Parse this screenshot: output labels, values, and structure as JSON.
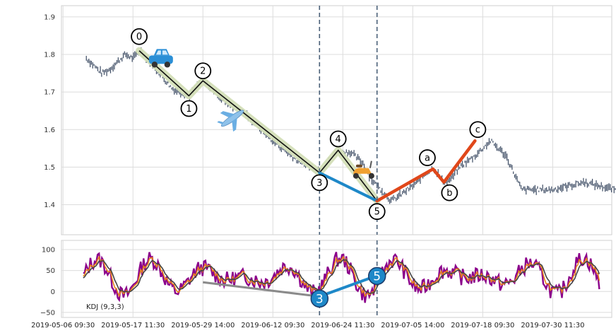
{
  "chart_data": [
    {
      "type": "line",
      "panel": "price",
      "title": "",
      "ylim": [
        1.32,
        1.93
      ],
      "yticks": [
        "1.4",
        "1.5",
        "1.6",
        "1.7",
        "1.8",
        "1.9"
      ],
      "grid": true,
      "colors": {
        "price_bar": "#3b4a62",
        "wave_band": "#d4dfb8",
        "wave_line": "#111111",
        "corrective_blue": "#1e88c8",
        "corrective_orange": "#e0471a",
        "vline": "#4a6078"
      },
      "price_keypoints": {
        "x": [
          0.0,
          0.5,
          1.0,
          1.5,
          2.0,
          2.5,
          3.0,
          3.5,
          4.5,
          5.5,
          6.6,
          7.0,
          7.5,
          8.3,
          9.0,
          10.0,
          11.0,
          12.0,
          13.5,
          15.0,
          15.5,
          16.0,
          17.0,
          17.8,
          18.3,
          18.7,
          19.2,
          19.6,
          20.0,
          21.0,
          21.5,
          22.3,
          23.0,
          23.5,
          24.0,
          25.0,
          26.0,
          27.0,
          28.0,
          29.0,
          30.0,
          31.0,
          32.0,
          33.0,
          34.0,
          35.5,
          36.2
        ],
        "close": [
          1.79,
          1.77,
          1.75,
          1.76,
          1.78,
          1.8,
          1.79,
          1.81,
          1.76,
          1.71,
          1.69,
          1.71,
          1.73,
          1.7,
          1.67,
          1.65,
          1.61,
          1.57,
          1.52,
          1.49,
          1.51,
          1.54,
          1.54,
          1.51,
          1.47,
          1.45,
          1.43,
          1.41,
          1.42,
          1.45,
          1.47,
          1.5,
          1.46,
          1.47,
          1.5,
          1.53,
          1.57,
          1.53,
          1.44,
          1.44,
          1.44,
          1.45,
          1.46,
          1.45,
          1.44,
          1.42,
          1.4
        ]
      },
      "waves": {
        "impulse": [
          {
            "label": "0",
            "x": 3.4,
            "y": 1.81
          },
          {
            "label": "1",
            "x": 6.6,
            "y": 1.69
          },
          {
            "label": "2",
            "x": 7.5,
            "y": 1.73
          },
          {
            "label": "3",
            "x": 15.0,
            "y": 1.485
          },
          {
            "label": "4",
            "x": 16.2,
            "y": 1.545
          },
          {
            "label": "5",
            "x": 18.7,
            "y": 1.41
          }
        ],
        "alt_3_to_5": [
          {
            "x": 15.0,
            "y": 1.485
          },
          {
            "x": 18.7,
            "y": 1.41
          }
        ],
        "corrective": [
          {
            "label": "5",
            "x": 18.7,
            "y": 1.41
          },
          {
            "label": "a",
            "x": 22.3,
            "y": 1.495
          },
          {
            "label": "b",
            "x": 23.0,
            "y": 1.46
          },
          {
            "label": "c",
            "x": 25.0,
            "y": 1.57
          }
        ]
      },
      "vlines_x": [
        15.0,
        18.7
      ],
      "markers": [
        "car-icon",
        "airplane-icon",
        "scooter-icon"
      ]
    },
    {
      "type": "line",
      "panel": "kdj",
      "annotation": "KDJ (9,3,3)",
      "ylim": [
        -62,
        122
      ],
      "yticks": [
        "−50",
        "0",
        "50",
        "100"
      ],
      "grid": true,
      "series_colors": {
        "K": "#e8841a",
        "D": "#444444",
        "J": "#8b008b"
      },
      "wave_line": {
        "grey": [
          {
            "x": 7.5,
            "y": 22
          },
          {
            "x": 15.0,
            "y": -12
          }
        ],
        "blue": [
          {
            "x": 15.0,
            "y": -12
          },
          {
            "x": 18.7,
            "y": 38
          }
        ],
        "labels": [
          {
            "label": "3",
            "x": 15.0,
            "y": -17
          },
          {
            "label": "5",
            "x": 18.7,
            "y": 37
          }
        ]
      }
    }
  ],
  "xaxis": {
    "ticks": [
      {
        "label": "2019-05-06 09:30",
        "x": -1.5
      },
      {
        "label": "2019-05-17 11:30",
        "x": 3.0
      },
      {
        "label": "2019-05-29 14:00",
        "x": 7.5
      },
      {
        "label": "2019-06-12 09:30",
        "x": 12.0
      },
      {
        "label": "2019-06-24 11:30",
        "x": 16.5
      },
      {
        "label": "2019-07-05 14:00",
        "x": 21.0
      },
      {
        "label": "2019-07-18 09:30",
        "x": 25.5
      },
      {
        "label": "2019-07-30 11:30",
        "x": 30.0
      }
    ],
    "xlim": [
      -1.6,
      33.8
    ]
  }
}
